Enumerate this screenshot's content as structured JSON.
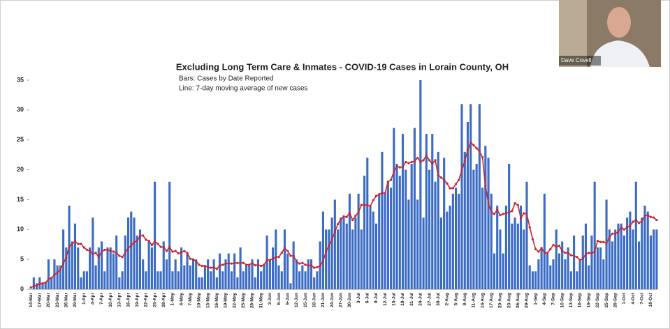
{
  "chart_data": {
    "type": "bar",
    "title": "Excluding Long Term Care & Inmates - COVID-19 Cases in Lorain County, OH",
    "subtitle": [
      "Bars: Cases by Date Reported",
      "Line: 7-day moving average of new cases"
    ],
    "participant_name": "Dave Covell",
    "categories": [
      "14-Mar",
      null,
      null,
      "17-Mar",
      null,
      null,
      "20-Mar",
      null,
      null,
      "23-Mar",
      null,
      null,
      "26-Mar",
      null,
      null,
      "29-Mar",
      null,
      null,
      "1-Apr",
      null,
      null,
      "4-Apr",
      null,
      null,
      "7-Apr",
      null,
      null,
      "10-Apr",
      null,
      null,
      "13-Apr",
      null,
      null,
      "16-Apr",
      null,
      null,
      "19-Apr",
      null,
      null,
      "22-Apr",
      null,
      null,
      "25-Apr",
      null,
      null,
      "28-Apr",
      null,
      null,
      "1-May",
      null,
      null,
      "4-May",
      null,
      null,
      "7-May",
      null,
      null,
      "10-May",
      null,
      null,
      "13-May",
      null,
      null,
      "16-May",
      null,
      null,
      "19-May",
      null,
      null,
      "22-May",
      null,
      null,
      "25-May",
      null,
      null,
      "28-May",
      null,
      null,
      "31-May",
      null,
      null,
      "3-Jun",
      null,
      null,
      "6-Jun",
      null,
      null,
      "9-Jun",
      null,
      null,
      "12-Jun",
      null,
      null,
      "15-Jun",
      null,
      null,
      "18-Jun",
      null,
      null,
      "21-Jun",
      null,
      null,
      "24-Jun",
      null,
      null,
      "27-Jun",
      null,
      null,
      "30-Jun",
      null,
      null,
      "3-Jul",
      null,
      null,
      "6-Jul",
      null,
      null,
      "9-Jul",
      null,
      null,
      "12-Jul",
      null,
      null,
      "15-Jul",
      null,
      null,
      "18-Jul",
      null,
      null,
      "21-Jul",
      null,
      null,
      "24-Jul",
      null,
      null,
      "27-Jul",
      null,
      null,
      "30-Jul",
      null,
      null,
      "2-Aug",
      null,
      null,
      "5-Aug",
      null,
      null,
      "8-Aug",
      null,
      null,
      "11-Aug",
      null,
      null,
      "14-Aug",
      null,
      null,
      "17-Aug",
      null,
      null,
      "20-Aug",
      null,
      null,
      "23-Aug",
      null,
      null,
      "26-Aug",
      null,
      null,
      "29-Aug",
      null,
      null,
      "1-Sep",
      null,
      null,
      "4-Sep",
      null,
      null,
      "7-Sep",
      null,
      null,
      "10-Sep",
      null,
      null,
      "13-Sep",
      null,
      null,
      "16-Sep",
      null,
      null,
      "19-Sep",
      null,
      null,
      "22-Sep",
      null,
      null,
      "25-Sep",
      null,
      null,
      "28-Sep",
      null,
      null,
      "1-Oct",
      null,
      null,
      "4-Oct",
      null,
      null,
      "7-Oct",
      null,
      null,
      "10-Oct",
      null,
      null
    ],
    "series": [
      {
        "type": "bar",
        "color": "#3b6cc5",
        "values": [
          0,
          2,
          1,
          2,
          1,
          1,
          5,
          2,
          5,
          4,
          4,
          10,
          7,
          14,
          8,
          11,
          7,
          2,
          3,
          3,
          7,
          12,
          4,
          7,
          8,
          3,
          7,
          7,
          6,
          9,
          2,
          3,
          9,
          12,
          13,
          12,
          9,
          10,
          5,
          3,
          8,
          7,
          18,
          3,
          3,
          8,
          5,
          18,
          3,
          5,
          3,
          7,
          4,
          6,
          4,
          5,
          5,
          2,
          2,
          4,
          5,
          3,
          5,
          2,
          6,
          3,
          5,
          6,
          3,
          6,
          2,
          7,
          3,
          4,
          4,
          5,
          2,
          5,
          3,
          4,
          9,
          5,
          7,
          10,
          4,
          3,
          10,
          6,
          1,
          8,
          5,
          3,
          4,
          3,
          5,
          5,
          2,
          3,
          8,
          13,
          10,
          10,
          12,
          15,
          10,
          12,
          12,
          11,
          16,
          10,
          12,
          16,
          10,
          19,
          22,
          14,
          13,
          11,
          16,
          23,
          16,
          18,
          17,
          27,
          21,
          19,
          26,
          20,
          15,
          21,
          27,
          15,
          35,
          12,
          26,
          20,
          26,
          18,
          23,
          12,
          22,
          13,
          14,
          16,
          17,
          16,
          31,
          23,
          28,
          31,
          20,
          21,
          31,
          17,
          24,
          22,
          16,
          6,
          14,
          10,
          6,
          14,
          21,
          11,
          12,
          11,
          14,
          10,
          18,
          4,
          3,
          3,
          5,
          7,
          16,
          6,
          4,
          5,
          10,
          6,
          8,
          5,
          7,
          3,
          9,
          3,
          5,
          9,
          11,
          4,
          9,
          18,
          7,
          7,
          5,
          15,
          10,
          8,
          10,
          11,
          11,
          9,
          12,
          13,
          10,
          18,
          8,
          12,
          14,
          13,
          9,
          10,
          10
        ]
      },
      {
        "type": "line",
        "color": "#c8262c",
        "values": [
          0.3,
          0.5,
          0.7,
          0.9,
          1.0,
          1.1,
          1.7,
          1.9,
          2.4,
          2.8,
          3.3,
          4.3,
          5.3,
          7.1,
          7.6,
          8.0,
          7.6,
          7.6,
          7.0,
          6.6,
          6.4,
          5.9,
          6.1,
          5.4,
          6.3,
          6.6,
          6.6,
          6.4,
          6.3,
          6.1,
          5.6,
          5.4,
          6.1,
          6.9,
          7.3,
          7.9,
          8.1,
          8.9,
          9.0,
          8.3,
          8.1,
          7.4,
          8.0,
          7.6,
          7.1,
          7.0,
          6.4,
          7.1,
          6.3,
          6.4,
          6.0,
          6.2,
          6.4,
          6.1,
          5.1,
          5.0,
          4.7,
          4.1,
          3.9,
          3.9,
          3.7,
          3.6,
          3.7,
          3.4,
          4.0,
          4.1,
          4.3,
          4.3,
          4.3,
          4.4,
          4.4,
          4.4,
          4.4,
          4.1,
          4.1,
          4.4,
          4.0,
          4.1,
          3.9,
          4.1,
          4.9,
          4.9,
          5.1,
          5.4,
          5.4,
          6.1,
          6.9,
          6.4,
          5.6,
          5.6,
          4.6,
          4.3,
          4.4,
          4.1,
          4.0,
          4.0,
          3.6,
          3.7,
          3.9,
          4.7,
          6.3,
          7.3,
          8.3,
          9.6,
          10.9,
          11.7,
          12.2,
          12.1,
          12.8,
          11.6,
          12.3,
          12.9,
          14.1,
          14.1,
          14.1,
          13.9,
          14.9,
          15.6,
          15.9,
          16.1,
          16.1,
          18.0,
          18.3,
          19.7,
          20.6,
          20.4,
          20.5,
          21.3,
          21.1,
          21.3,
          21.4,
          22.0,
          21.3,
          21.6,
          22.4,
          21.6,
          21.0,
          21.6,
          19.1,
          18.7,
          18.3,
          17.7,
          16.9,
          16.9,
          17.6,
          18.3,
          19.9,
          21.5,
          23.3,
          24.6,
          24.1,
          23.6,
          23.1,
          22.1,
          17.3,
          14.4,
          12.9,
          12.6,
          13.3,
          12.4,
          12.6,
          12.7,
          12.9,
          13.1,
          14.4,
          14.1,
          11.9,
          12.7,
          12.6,
          10.4,
          8.4,
          6.7,
          6.3,
          6.9,
          6.1,
          6.1,
          6.7,
          7.4,
          7.1,
          7.3,
          6.4,
          6.1,
          6.1,
          5.7,
          5.6,
          5.4,
          4.9,
          5.1,
          5.9,
          6.1,
          6.0,
          6.3,
          8.1,
          7.9,
          7.9,
          7.7,
          8.7,
          9.3,
          9.3,
          9.6,
          10.4,
          10.0,
          10.4,
          10.6,
          11.3,
          11.6,
          11.1,
          11.4,
          12.3,
          12.4,
          12.1,
          12.0,
          11.6
        ]
      }
    ],
    "ylim": [
      0,
      35
    ],
    "yticks": [
      0,
      5,
      10,
      15,
      20,
      25,
      30,
      35
    ],
    "grid": false
  }
}
